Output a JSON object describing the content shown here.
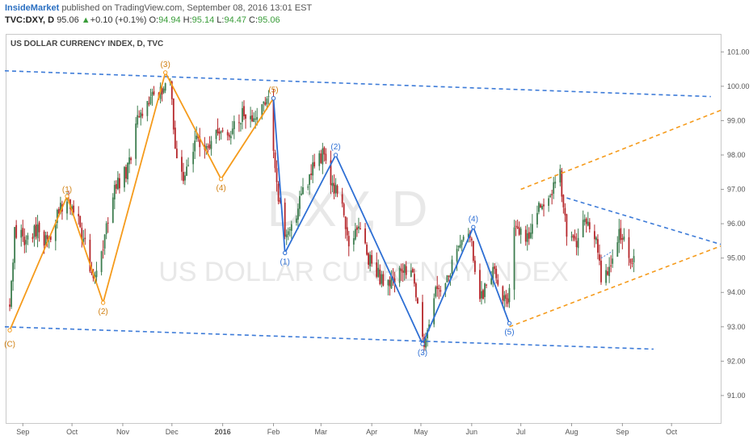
{
  "header": {
    "author": "InsideMarket",
    "published": "published on TradingView.com, September 08, 2016 13:01 EST",
    "symbol": "TVC:DXY, D",
    "last": "95.06",
    "arrow": "▲",
    "change": "+0.10 (+0.1%)",
    "o_label": "O:",
    "o_value": "94.94",
    "h_label": "H:",
    "h_value": "95.14",
    "l_label": "L:",
    "l_value": "94.47",
    "c_label": "C:",
    "c_value": "95.06"
  },
  "chart_data": {
    "type": "candlestick",
    "title": "US DOLLAR CURRENCY INDEX, D, TVC",
    "watermark_symbol": "DXY, D",
    "watermark_name": "US DOLLAR CURRENCY INDEX",
    "y_axis": {
      "side": "right",
      "ylim": [
        90.2,
        101.5
      ],
      "ticks": [
        "101.00",
        "100.00",
        "99.00",
        "98.00",
        "97.00",
        "96.00",
        "95.00",
        "94.00",
        "93.00",
        "92.00",
        "91.00"
      ]
    },
    "x_axis": {
      "xlim": [
        "2015-08-22",
        "2016-10-31"
      ],
      "ticks": [
        "Sep",
        "Oct",
        "Nov",
        "Dec",
        "2016",
        "Feb",
        "Mar",
        "Apr",
        "May",
        "Jun",
        "Jul",
        "Aug",
        "Sep",
        "Oct"
      ],
      "tick_dates": [
        "2015-09-01",
        "2015-10-01",
        "2015-11-01",
        "2015-12-01",
        "2016-01-01",
        "2016-02-01",
        "2016-03-01",
        "2016-04-01",
        "2016-05-01",
        "2016-06-01",
        "2016-07-01",
        "2016-08-01",
        "2016-09-01",
        "2016-10-01"
      ]
    },
    "colors": {
      "up": "#3d7d4f",
      "down": "#b5262a",
      "wave_orange": "#f59b1c",
      "wave_blue": "#2e6fd4",
      "trend_blue": "#3d7bd8",
      "trend_orange": "#f59b1c"
    },
    "candle_path": [
      [
        "2015-08-24",
        93.6
      ],
      [
        "2015-08-27",
        95.8
      ],
      [
        "2015-09-02",
        95.5
      ],
      [
        "2015-09-10",
        95.9
      ],
      [
        "2015-09-16",
        95.4
      ],
      [
        "2015-09-22",
        96.3
      ],
      [
        "2015-09-28",
        96.8
      ],
      [
        "2015-10-05",
        96.0
      ],
      [
        "2015-10-14",
        94.5
      ],
      [
        "2015-10-18",
        94.9
      ],
      [
        "2015-10-26",
        96.9
      ],
      [
        "2015-11-04",
        97.6
      ],
      [
        "2015-11-10",
        99.0
      ],
      [
        "2015-11-20",
        99.7
      ],
      [
        "2015-11-30",
        100.2
      ],
      [
        "2015-12-03",
        98.1
      ],
      [
        "2015-12-08",
        97.4
      ],
      [
        "2015-12-15",
        98.4
      ],
      [
        "2015-12-22",
        98.3
      ],
      [
        "2015-12-30",
        98.6
      ],
      [
        "2016-01-07",
        98.8
      ],
      [
        "2016-01-14",
        99.2
      ],
      [
        "2016-01-22",
        99.2
      ],
      [
        "2016-01-29",
        99.6
      ],
      [
        "2016-02-03",
        97.0
      ],
      [
        "2016-02-05",
        96.6
      ],
      [
        "2016-02-09",
        95.6
      ],
      [
        "2016-02-12",
        95.9
      ],
      [
        "2016-02-18",
        96.8
      ],
      [
        "2016-02-25",
        97.6
      ],
      [
        "2016-03-02",
        98.0
      ],
      [
        "2016-03-08",
        97.1
      ],
      [
        "2016-03-14",
        96.7
      ],
      [
        "2016-03-18",
        95.3
      ],
      [
        "2016-03-24",
        96.1
      ],
      [
        "2016-03-29",
        95.1
      ],
      [
        "2016-04-05",
        94.5
      ],
      [
        "2016-04-12",
        94.2
      ],
      [
        "2016-04-18",
        94.6
      ],
      [
        "2016-04-25",
        94.8
      ],
      [
        "2016-05-03",
        92.6
      ],
      [
        "2016-05-10",
        94.0
      ],
      [
        "2016-05-17",
        94.5
      ],
      [
        "2016-05-24",
        95.3
      ],
      [
        "2016-05-31",
        95.7
      ],
      [
        "2016-06-06",
        93.9
      ],
      [
        "2016-06-10",
        94.1
      ],
      [
        "2016-06-15",
        94.8
      ],
      [
        "2016-06-21",
        93.7
      ],
      [
        "2016-06-23",
        93.5
      ],
      [
        "2016-06-27",
        95.9
      ],
      [
        "2016-07-05",
        95.6
      ],
      [
        "2016-07-12",
        96.5
      ],
      [
        "2016-07-19",
        96.9
      ],
      [
        "2016-07-25",
        97.4
      ],
      [
        "2016-07-29",
        95.6
      ],
      [
        "2016-08-03",
        95.4
      ],
      [
        "2016-08-09",
        96.0
      ],
      [
        "2016-08-15",
        95.7
      ],
      [
        "2016-08-19",
        94.5
      ],
      [
        "2016-08-24",
        94.6
      ],
      [
        "2016-08-29",
        95.6
      ],
      [
        "2016-09-02",
        95.8
      ],
      [
        "2016-09-06",
        94.9
      ],
      [
        "2016-09-08",
        95.06
      ]
    ],
    "wave_labels": [
      {
        "text": "(C)",
        "date": "2015-08-24",
        "price": 92.75,
        "color": "orange",
        "pos": "below"
      },
      {
        "text": "(1)",
        "date": "2015-09-28",
        "price": 96.75,
        "color": "orange",
        "pos": "above"
      },
      {
        "text": "(2)",
        "date": "2015-10-20",
        "price": 93.7,
        "color": "orange",
        "pos": "below"
      },
      {
        "text": "(3)",
        "date": "2015-11-27",
        "price": 100.4,
        "color": "orange",
        "pos": "above"
      },
      {
        "text": "(4)",
        "date": "2015-12-31",
        "price": 97.3,
        "color": "orange",
        "pos": "below"
      },
      {
        "text": "(5)",
        "date": "2016-02-01",
        "price": 99.65,
        "color": "orange",
        "pos": "above"
      },
      {
        "text": "(1)",
        "date": "2016-02-08",
        "price": 95.15,
        "color": "blue",
        "pos": "below"
      },
      {
        "text": "(2)",
        "date": "2016-03-10",
        "price": 98.0,
        "color": "blue",
        "pos": "above"
      },
      {
        "text": "(3)",
        "date": "2016-05-02",
        "price": 92.5,
        "color": "blue",
        "pos": "below"
      },
      {
        "text": "(4)",
        "date": "2016-06-02",
        "price": 95.9,
        "color": "blue",
        "pos": "above"
      },
      {
        "text": "(5)",
        "date": "2016-06-24",
        "price": 93.1,
        "color": "blue",
        "pos": "below"
      }
    ],
    "waves_orange": [
      [
        "2015-08-24",
        92.9
      ],
      [
        "2015-09-28",
        96.8
      ],
      [
        "2015-10-20",
        93.7
      ],
      [
        "2015-11-27",
        100.4
      ],
      [
        "2015-12-31",
        97.3
      ],
      [
        "2016-02-01",
        99.65
      ]
    ],
    "waves_blue": [
      [
        "2016-02-01",
        99.65
      ],
      [
        "2016-02-08",
        95.15
      ],
      [
        "2016-03-10",
        98.0
      ],
      [
        "2016-05-02",
        92.5
      ],
      [
        "2016-06-02",
        95.9
      ],
      [
        "2016-06-24",
        93.1
      ]
    ],
    "trendlines": [
      {
        "color": "blue",
        "from": [
          "2015-08-21",
          100.45
        ],
        "to": [
          "2016-10-25",
          99.7
        ]
      },
      {
        "color": "blue",
        "from": [
          "2015-08-21",
          93.0
        ],
        "to": [
          "2016-09-20",
          92.35
        ]
      },
      {
        "color": "orange",
        "from": [
          "2016-07-01",
          97.0
        ],
        "to": [
          "2016-10-31",
          99.3
        ]
      },
      {
        "color": "orange",
        "from": [
          "2016-06-24",
          93.0
        ],
        "to": [
          "2016-10-31",
          95.35
        ]
      },
      {
        "color": "blue",
        "from": [
          "2016-07-29",
          96.75
        ],
        "to": [
          "2016-10-31",
          95.4
        ]
      }
    ],
    "dotted_line": [
      [
        "2016-08-19",
        95.0
      ],
      [
        "2016-08-26",
        95.2
      ]
    ]
  }
}
